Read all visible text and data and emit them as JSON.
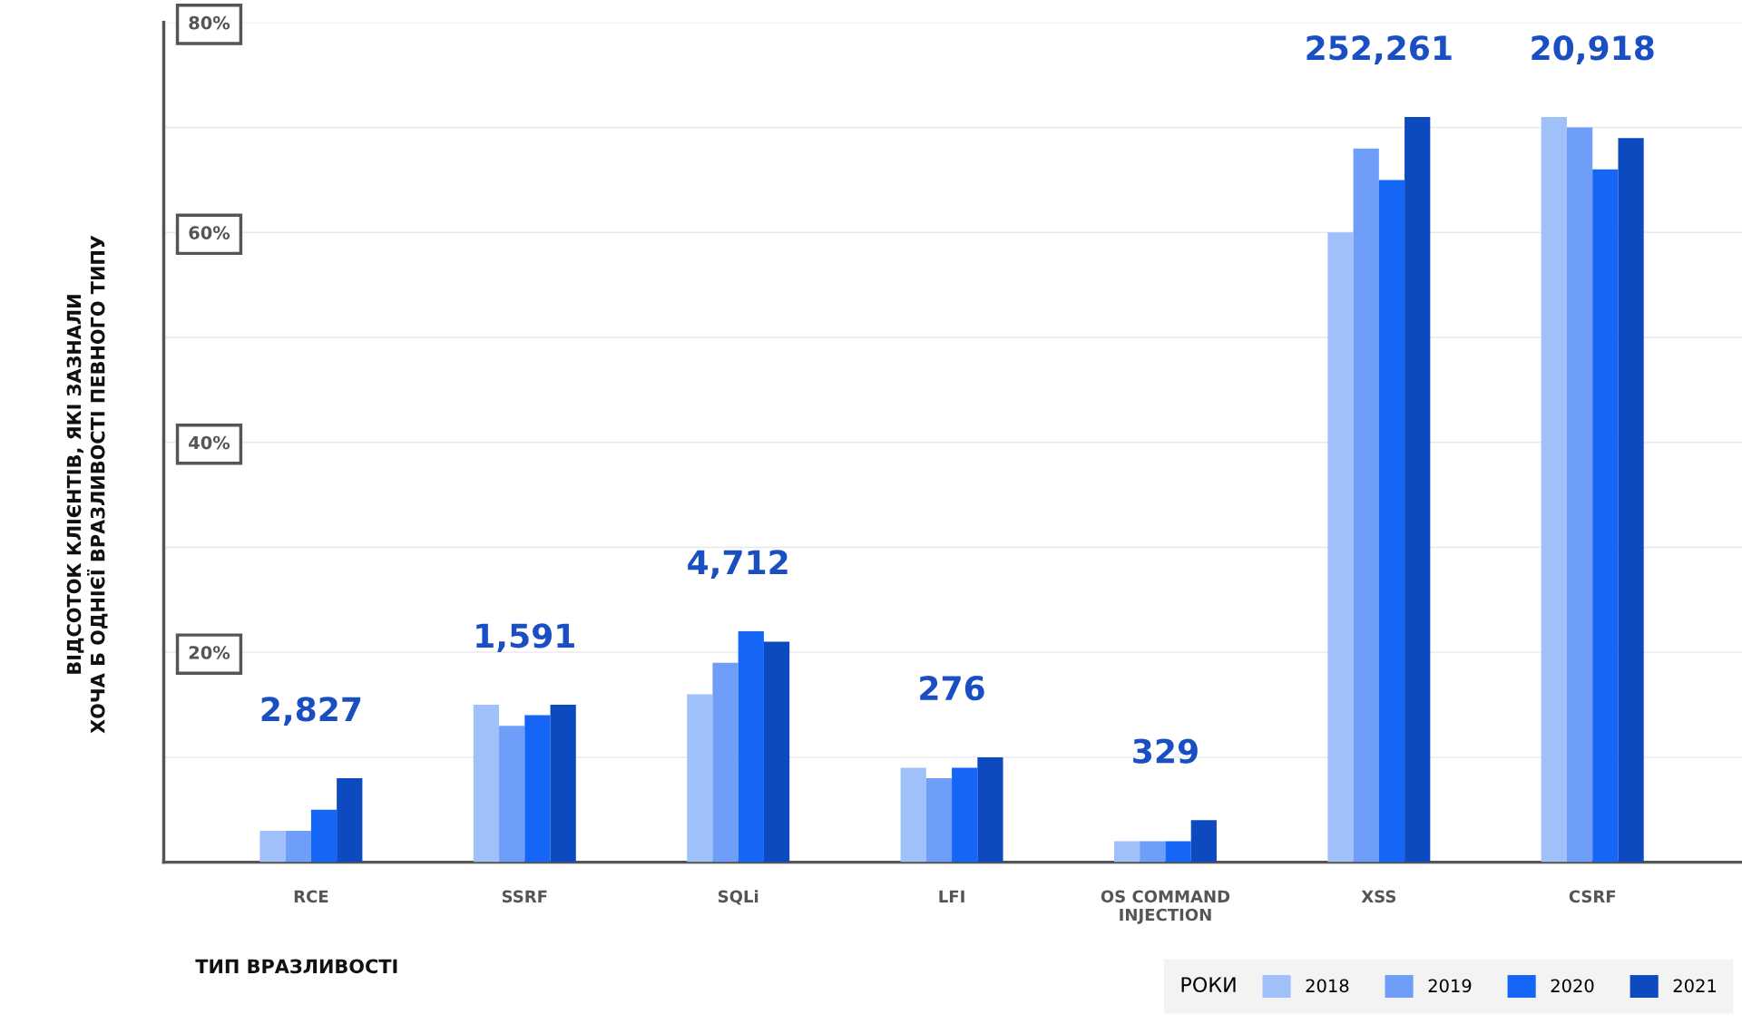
{
  "chart_data": {
    "type": "bar",
    "xlabel": "ТИП ВРАЗЛИВОСТІ",
    "ylabel": "ВІДСОТОК КЛІЄНТІВ, ЯКІ ЗАЗНАЛИ\nХОЧА Б ОДНІЄЇ ВРАЗЛИВОСТІ ПЕВНОГО ТИПУ",
    "legend_title": "РОКИ",
    "categories": [
      "RCE",
      "SSRF",
      "SQLi",
      "LFI",
      "OS COMMAND\nINJECTION",
      "XSS",
      "CSRF"
    ],
    "series": [
      {
        "name": "2018",
        "color": "#a0c0fa",
        "values": [
          3,
          15,
          16,
          9,
          2,
          60,
          71
        ]
      },
      {
        "name": "2019",
        "color": "#6f9ef8",
        "values": [
          3,
          13,
          19,
          8,
          2,
          68,
          70
        ]
      },
      {
        "name": "2020",
        "color": "#1565f6",
        "values": [
          5,
          14,
          22,
          9,
          2,
          65,
          66
        ]
      },
      {
        "name": "2021",
        "color": "#0d4ac0",
        "values": [
          8,
          15,
          21,
          10,
          4,
          71,
          69
        ]
      }
    ],
    "annotations": [
      "2,827",
      "1,591",
      "4,712",
      "276",
      "329",
      "252,261",
      "20,918"
    ],
    "ylim": [
      0,
      80
    ],
    "yticks": [
      {
        "value": 10,
        "label": null
      },
      {
        "value": 20,
        "label": "20%"
      },
      {
        "value": 30,
        "label": null
      },
      {
        "value": 40,
        "label": "40%"
      },
      {
        "value": 50,
        "label": null
      },
      {
        "value": 60,
        "label": "60%"
      },
      {
        "value": 70,
        "label": null
      },
      {
        "value": 80,
        "label": "80%"
      }
    ],
    "grid": "y",
    "legend": "bottom right"
  }
}
